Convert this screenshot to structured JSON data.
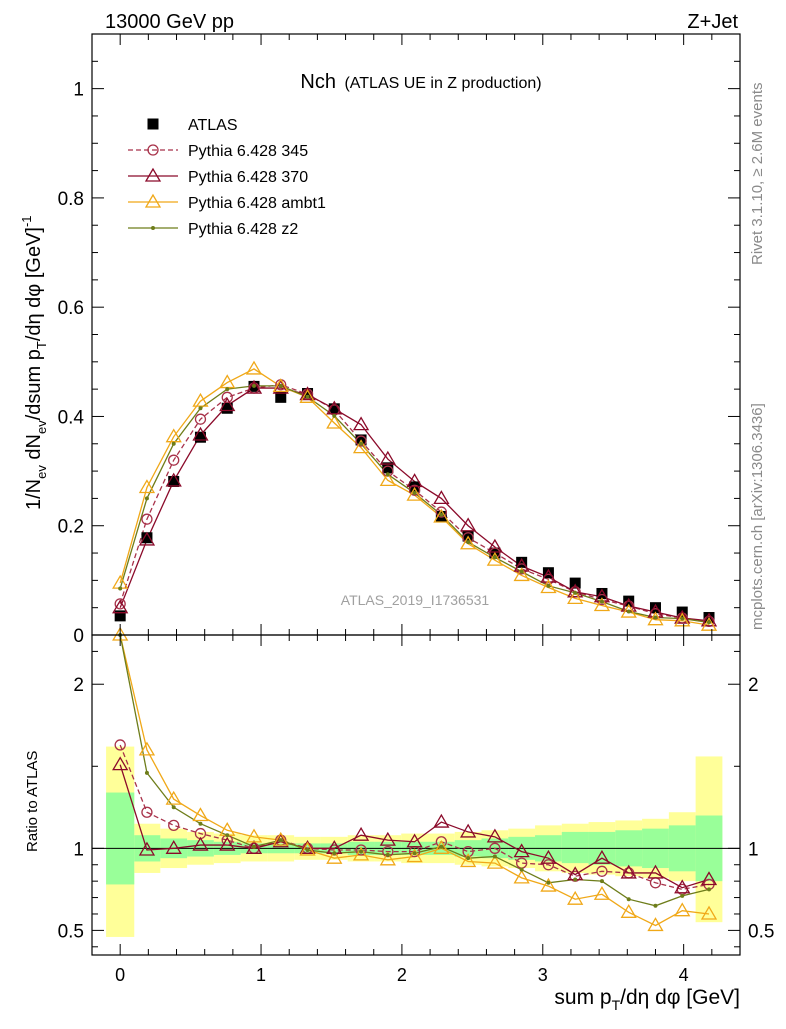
{
  "header": {
    "left": "13000 GeV pp",
    "right": "Z+Jet"
  },
  "chart_data": {
    "type": "line",
    "title_main": "Nch",
    "title_sub": "(ATLAS UE in Z production)",
    "xlabel": "sum p_T/dη dφ [GeV]",
    "ylabel": "1/N_ev dN_ev/dsum p_T/dη dφ [GeV]^-1",
    "ratio_ylabel": "Ratio to ATLAS",
    "xlim": [
      -0.2,
      4.4
    ],
    "ylim": [
      0,
      1.1
    ],
    "ratio_ylim": [
      0.35,
      2.3
    ],
    "xticks": [
      0,
      1,
      2,
      3,
      4
    ],
    "yticks": [
      0,
      0.2,
      0.4,
      0.6,
      0.8,
      1
    ],
    "ytick_labels": [
      "0",
      "0.2",
      "0.4",
      "0.6",
      "0.8",
      "1"
    ],
    "ratio_yticks": [
      0.5,
      1,
      2
    ],
    "ratio_ytick_labels": [
      "0.5",
      "1",
      "2"
    ],
    "watermark": "ATLAS_2019_I1736531",
    "side_text_top": "Rivet 3.1.10, ≥ 2.6M events",
    "side_text_bottom": "mcplots.cern.ch [arXiv:1306.3436]",
    "x": [
      0,
      0.19,
      0.38,
      0.57,
      0.76,
      0.95,
      1.14,
      1.33,
      1.52,
      1.71,
      1.9,
      2.09,
      2.28,
      2.47,
      2.66,
      2.85,
      3.04,
      3.23,
      3.42,
      3.61,
      3.8,
      3.99,
      4.18
    ],
    "band_edges": [
      -0.1,
      0.1,
      0.285,
      0.475,
      0.665,
      0.855,
      1.045,
      1.235,
      1.425,
      1.615,
      1.805,
      1.995,
      2.185,
      2.375,
      2.565,
      2.755,
      2.945,
      3.135,
      3.325,
      3.515,
      3.705,
      3.895,
      4.085,
      4.275
    ],
    "band_inner": [
      [
        0.78,
        1.34
      ],
      [
        0.92,
        1.08
      ],
      [
        0.94,
        1.06
      ],
      [
        0.95,
        1.05
      ],
      [
        0.96,
        1.04
      ],
      [
        0.97,
        1.03
      ],
      [
        0.97,
        1.03
      ],
      [
        0.97,
        1.03
      ],
      [
        0.97,
        1.03
      ],
      [
        0.96,
        1.04
      ],
      [
        0.96,
        1.04
      ],
      [
        0.96,
        1.04
      ],
      [
        0.96,
        1.04
      ],
      [
        0.95,
        1.05
      ],
      [
        0.94,
        1.06
      ],
      [
        0.93,
        1.07
      ],
      [
        0.92,
        1.08
      ],
      [
        0.91,
        1.1
      ],
      [
        0.9,
        1.1
      ],
      [
        0.89,
        1.11
      ],
      [
        0.88,
        1.12
      ],
      [
        0.86,
        1.14
      ],
      [
        0.8,
        1.2
      ]
    ],
    "band_outer": [
      [
        0.46,
        1.62
      ],
      [
        0.85,
        1.15
      ],
      [
        0.88,
        1.12
      ],
      [
        0.9,
        1.1
      ],
      [
        0.91,
        1.09
      ],
      [
        0.92,
        1.08
      ],
      [
        0.92,
        1.08
      ],
      [
        0.93,
        1.07
      ],
      [
        0.93,
        1.07
      ],
      [
        0.92,
        1.08
      ],
      [
        0.92,
        1.08
      ],
      [
        0.91,
        1.09
      ],
      [
        0.91,
        1.09
      ],
      [
        0.9,
        1.1
      ],
      [
        0.89,
        1.11
      ],
      [
        0.88,
        1.12
      ],
      [
        0.86,
        1.14
      ],
      [
        0.85,
        1.15
      ],
      [
        0.84,
        1.16
      ],
      [
        0.83,
        1.17
      ],
      [
        0.82,
        1.18
      ],
      [
        0.8,
        1.22
      ],
      [
        0.55,
        1.56
      ]
    ],
    "series": [
      {
        "name": "ATLAS",
        "color": "#000000",
        "marker": "square",
        "line": "none",
        "values": [
          0.035,
          0.178,
          0.281,
          0.362,
          0.415,
          0.455,
          0.435,
          0.442,
          0.414,
          0.357,
          0.306,
          0.271,
          0.217,
          0.181,
          0.15,
          0.133,
          0.114,
          0.095,
          0.076,
          0.062,
          0.05,
          0.042,
          0.032
        ]
      },
      {
        "name": "Pythia 6.428 345",
        "color": "#a8324a",
        "marker": "circle",
        "line": "dashed",
        "values": [
          0.057,
          0.212,
          0.32,
          0.395,
          0.435,
          0.452,
          0.458,
          0.441,
          0.412,
          0.355,
          0.3,
          0.265,
          0.225,
          0.178,
          0.15,
          0.121,
          0.102,
          0.079,
          0.065,
          0.053,
          0.039,
          0.031,
          0.025
        ],
        "ratio": [
          1.63,
          1.22,
          1.14,
          1.09,
          1.05,
          1.0,
          1.05,
          1.0,
          0.99,
          0.99,
          0.98,
          0.98,
          1.04,
          0.98,
          1.0,
          0.91,
          0.9,
          0.83,
          0.86,
          0.85,
          0.79,
          0.75,
          0.78
        ]
      },
      {
        "name": "Pythia 6.428 370",
        "color": "#8b0a2a",
        "marker": "triangle",
        "line": "solid",
        "values": [
          0.05,
          0.174,
          0.282,
          0.366,
          0.42,
          0.452,
          0.452,
          0.44,
          0.414,
          0.385,
          0.322,
          0.281,
          0.25,
          0.2,
          0.161,
          0.126,
          0.106,
          0.079,
          0.07,
          0.053,
          0.042,
          0.031,
          0.026
        ],
        "ratio": [
          1.51,
          0.99,
          1.0,
          1.02,
          1.02,
          1.0,
          1.04,
          1.0,
          1.0,
          1.08,
          1.05,
          1.04,
          1.16,
          1.1,
          1.07,
          0.98,
          0.94,
          0.84,
          0.94,
          0.85,
          0.85,
          0.76,
          0.81
        ]
      },
      {
        "name": "Pythia 6.428 ambt1",
        "color": "#f0a818",
        "marker": "triangle",
        "line": "solid",
        "values": [
          0.095,
          0.27,
          0.363,
          0.428,
          0.462,
          0.487,
          0.455,
          0.435,
          0.388,
          0.343,
          0.283,
          0.256,
          0.216,
          0.167,
          0.137,
          0.109,
          0.087,
          0.067,
          0.054,
          0.042,
          0.028,
          0.026,
          0.018
        ],
        "ratio": [
          2.7,
          1.6,
          1.3,
          1.2,
          1.11,
          1.07,
          1.05,
          0.99,
          0.94,
          0.96,
          0.93,
          0.95,
          1.0,
          0.92,
          0.91,
          0.82,
          0.77,
          0.69,
          0.72,
          0.61,
          0.53,
          0.62,
          0.6
        ]
      },
      {
        "name": "Pythia 6.428 z2",
        "color": "#6e7d1a",
        "marker": "dot",
        "line": "solid",
        "values": [
          0.085,
          0.25,
          0.35,
          0.415,
          0.45,
          0.456,
          0.456,
          0.436,
          0.401,
          0.35,
          0.294,
          0.26,
          0.22,
          0.17,
          0.142,
          0.116,
          0.09,
          0.077,
          0.061,
          0.043,
          0.032,
          0.03,
          0.023
        ],
        "ratio": [
          2.4,
          1.46,
          1.25,
          1.15,
          1.08,
          1.01,
          1.05,
          0.99,
          0.97,
          0.98,
          0.96,
          0.97,
          1.01,
          0.94,
          0.95,
          0.87,
          0.79,
          0.81,
          0.8,
          0.69,
          0.65,
          0.71,
          0.75
        ]
      }
    ]
  }
}
